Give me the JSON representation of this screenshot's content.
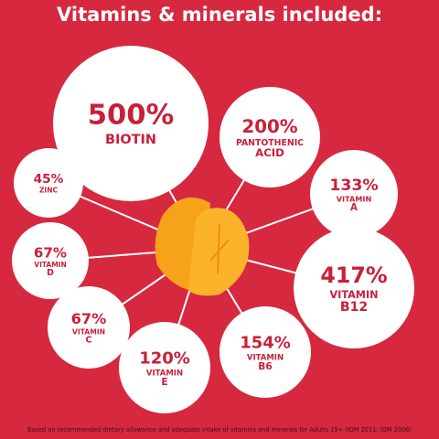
{
  "header": {
    "title": "Vitamins & minerals included:"
  },
  "nutrients": [
    {
      "percent": "500%",
      "name": [
        "BIOTIN"
      ]
    },
    {
      "percent": "200%",
      "name": [
        "PANTOTHENIC",
        "ACID"
      ]
    },
    {
      "percent": "133%",
      "name": [
        "VITAMIN",
        "A"
      ]
    },
    {
      "percent": "45%",
      "name": [
        "ZINC"
      ]
    },
    {
      "percent": "67%",
      "name": [
        "VITAMIN",
        "D"
      ]
    },
    {
      "percent": "417%",
      "name": [
        "VITAMIN",
        "B12"
      ]
    },
    {
      "percent": "67%",
      "name": [
        "VITAMIN",
        "C"
      ]
    },
    {
      "percent": "154%",
      "name": [
        "VITAMIN",
        "B6"
      ]
    },
    {
      "percent": "120%",
      "name": [
        "VITAMIN",
        "E"
      ]
    }
  ],
  "footnote": "Based on recommended dietary allowance and adequate intake of vitamins and minerals for Adults 19+ (IOM 2011; IOM 2006)"
}
